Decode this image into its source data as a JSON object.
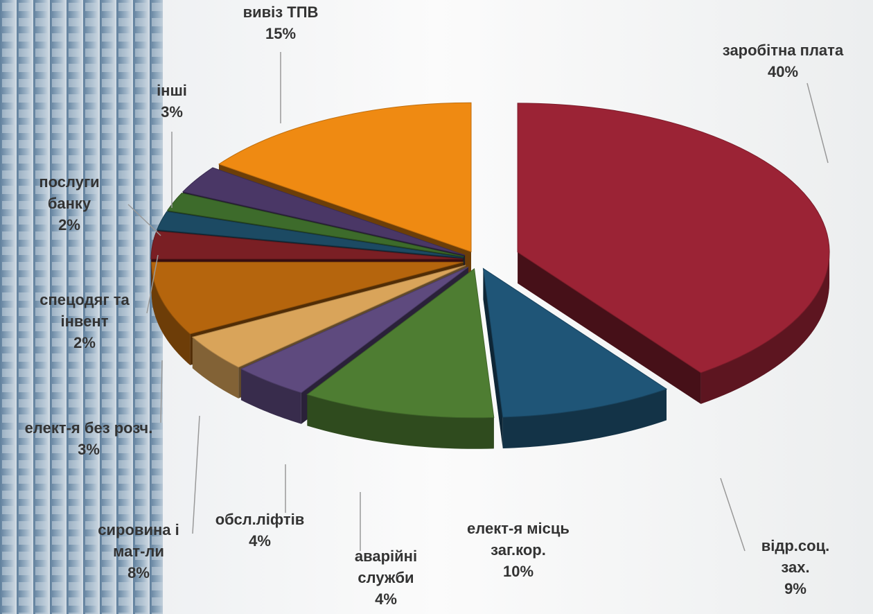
{
  "chart_data": {
    "type": "pie",
    "categories": [
      "заробітна плата",
      "відр.соц.\nзах.",
      "елект-я місць\nзаг.кор.",
      "аварійні\nслужби",
      "обсл.ліфтів",
      "сировина і\nмат-ли",
      "елект-я без розч.",
      "спецодяг та\nінвент",
      "послуги\nбанку",
      "інші",
      "вивіз ТПВ"
    ],
    "values": [
      40,
      9,
      10,
      4,
      4,
      8,
      3,
      2,
      2,
      3,
      15
    ],
    "value_labels": [
      "40%",
      "9%",
      "10%",
      "4%",
      "4%",
      "8%",
      "3%",
      "2%",
      "2%",
      "3%",
      "15%"
    ],
    "colors": [
      "#9b2335",
      "#1f5577",
      "#4e7d32",
      "#5e4a7e",
      "#d9a45a",
      "#b5650d",
      "#7a1f24",
      "#1c4a63",
      "#3d6b2b",
      "#4a3766",
      "#ef8a12"
    ]
  }
}
